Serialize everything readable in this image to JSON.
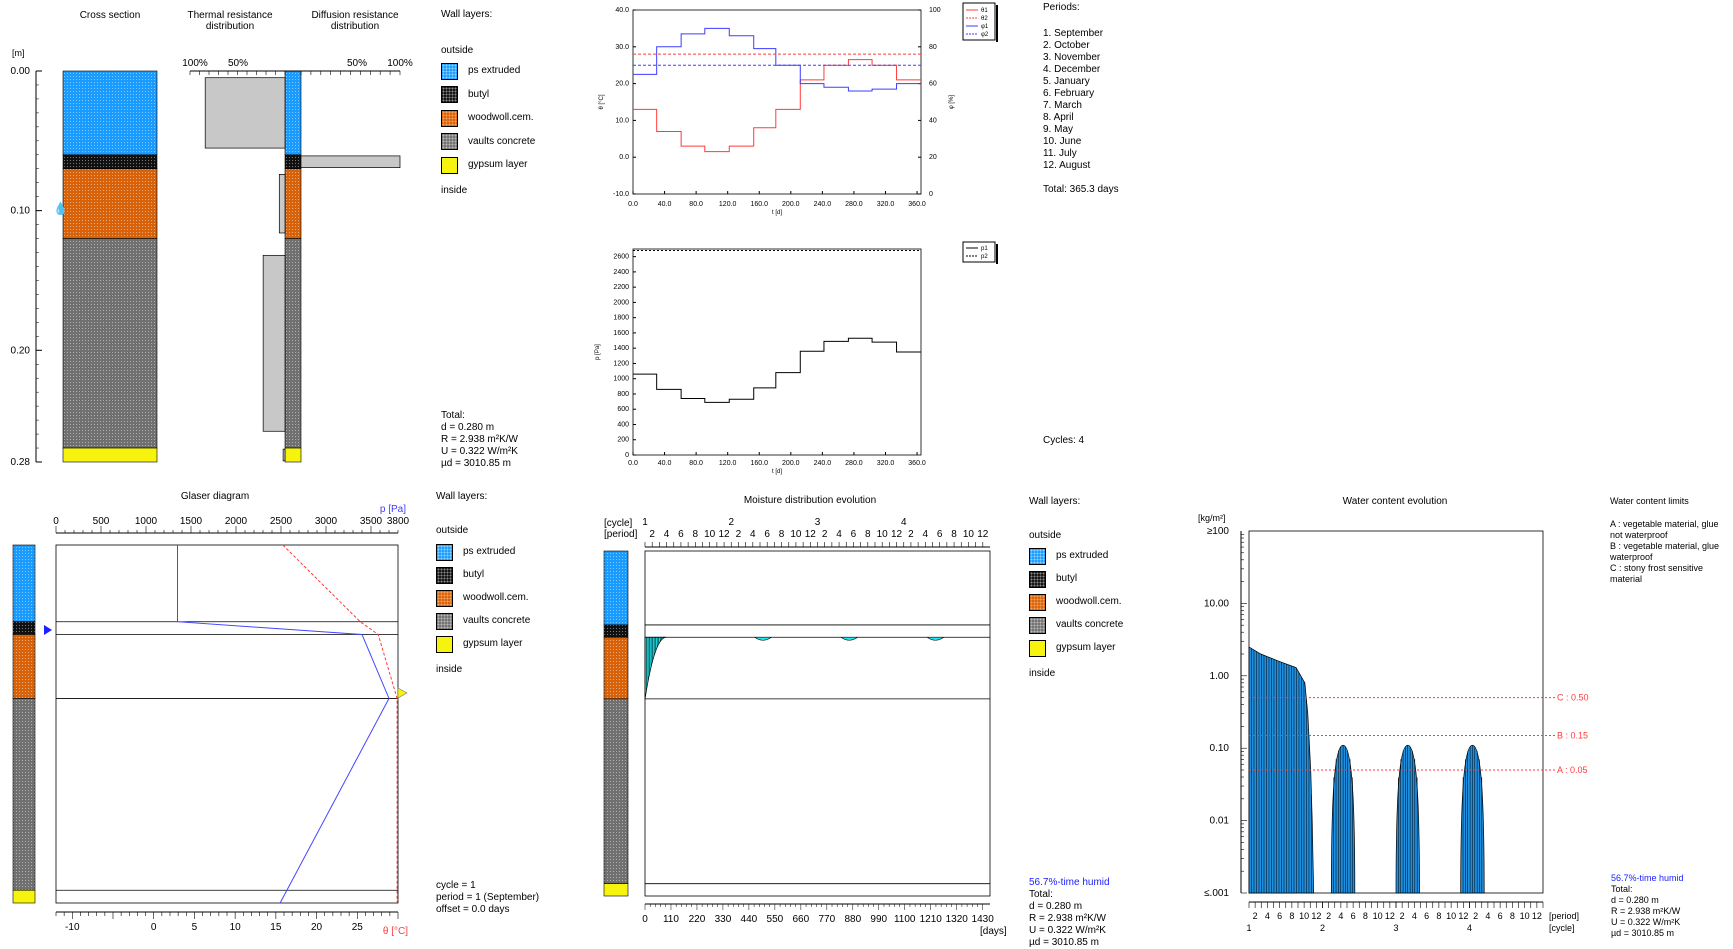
{
  "layers": [
    {
      "name": "ps extruded",
      "color": "#1a9cff",
      "cls": "pat-ps",
      "from": 0.0,
      "to": 0.06
    },
    {
      "name": "butyl",
      "color": "#111111",
      "cls": "pat-bu",
      "from": 0.06,
      "to": 0.07
    },
    {
      "name": "woodwoll.cem.",
      "color": "#d8620a",
      "cls": "pat-ww",
      "from": 0.07,
      "to": 0.12
    },
    {
      "name": "vaults concrete",
      "color": "#707070",
      "cls": "pat-vc",
      "from": 0.12,
      "to": 0.27
    },
    {
      "name": "gypsum layer",
      "color": "#f6f40e",
      "cls": "pat-gy",
      "from": 0.27,
      "to": 0.28
    }
  ],
  "cross_section": {
    "title": "Cross section",
    "unit": "[m]",
    "ticks": [
      "0.00",
      "0.10",
      "0.20",
      "0.28"
    ],
    "tick_values": [
      0,
      0.1,
      0.2,
      0.28
    ],
    "water_marker_depth": 0.095,
    "thermal_title": "Thermal resistance distribution",
    "diffusion_title": "Diffusion resistance distribution",
    "left_scale": [
      "100%",
      "50%"
    ],
    "right_scale": [
      "50%",
      "100%"
    ],
    "thermal_pct": [
      0.84,
      0,
      0.06,
      0.23,
      0.02
    ],
    "diffusion_pct": [
      0,
      1.0,
      0,
      0,
      0
    ]
  },
  "wall_layers_label": "Wall layers:",
  "outside_label": "outside",
  "inside_label": "inside",
  "totals": {
    "label": "Total:",
    "d": "d  = 0.280 m",
    "R": "R  = 2.938 m²K/W",
    "U": "U  = 0.322 W/m²K",
    "ud": "µd = 3010.85 m"
  },
  "climate_chart": {
    "type": "line",
    "x_ticks": [
      "0.0",
      "40.0",
      "80.0",
      "120.0",
      "160.0",
      "200.0",
      "240.0",
      "280.0",
      "320.0",
      "360.0"
    ],
    "y_ticks": [
      "-10.0",
      "0.0",
      "10.0",
      "20.0",
      "30.0",
      "40.0"
    ],
    "y2_ticks": [
      "0",
      "20",
      "40",
      "60",
      "80",
      "100"
    ],
    "xlabel": "t [d]",
    "ylabel": "θ [°C]",
    "y2label": "φ [%]",
    "legend": [
      "θ1",
      "θ2",
      "φ1",
      "φ2"
    ],
    "periods_x": [
      0,
      30,
      61,
      91,
      122,
      153,
      181,
      212,
      242,
      273,
      303,
      334,
      365
    ],
    "theta1": [
      13,
      7,
      3,
      1.5,
      3,
      8,
      13,
      21,
      25,
      26.5,
      25,
      21
    ],
    "theta2": 28,
    "phi1": [
      65,
      80,
      87,
      90,
      86,
      79,
      70,
      60,
      58,
      56,
      57,
      60
    ],
    "phi2": 70
  },
  "pressure_chart": {
    "type": "line",
    "x_ticks": [
      "0.0",
      "40.0",
      "80.0",
      "120.0",
      "160.0",
      "200.0",
      "240.0",
      "280.0",
      "320.0",
      "360.0"
    ],
    "y_ticks": [
      "0",
      "200",
      "400",
      "600",
      "800",
      "1000",
      "1200",
      "1400",
      "1600",
      "1800",
      "2000",
      "2200",
      "2400",
      "2600"
    ],
    "xlabel": "t [d]",
    "ylabel": "p [Pa]",
    "legend": [
      "p1",
      "p2"
    ],
    "p1": [
      1060,
      860,
      740,
      690,
      730,
      880,
      1080,
      1360,
      1490,
      1530,
      1480,
      1350
    ],
    "p2": 2680
  },
  "periods": {
    "title": "Periods:",
    "items": [
      "1. September",
      "2. October",
      "3. November",
      "4. December",
      "5. January",
      "6. February",
      "7. March",
      "8. April",
      "9. May",
      "10. June",
      "11. July",
      "12. August"
    ],
    "total": "Total: 365.3 days",
    "cycles": "Cycles: 4"
  },
  "glaser": {
    "title": "Glaser diagram",
    "p_label": "p [Pa]",
    "theta_label": "θ [°C]",
    "p_ticks": [
      "0",
      "500",
      "1000",
      "1500",
      "2000",
      "2500",
      "3000",
      "3500",
      "3800"
    ],
    "theta_ticks": [
      "-10",
      "0",
      "5",
      "10",
      "15",
      "20",
      "25"
    ],
    "cycle": "cycle = 1",
    "period": "period = 1 (September)",
    "offset": "offset = 0.0 days"
  },
  "moisture": {
    "title": "Moisture distribution evolution",
    "cycle_label": "[cycle]",
    "period_label": "[period]",
    "cycles": [
      "1",
      "2",
      "3",
      "4"
    ],
    "period_ticks": [
      "2",
      "4",
      "6",
      "8",
      "10",
      "12"
    ],
    "day_ticks": [
      "0",
      "110",
      "220",
      "330",
      "440",
      "550",
      "660",
      "770",
      "880",
      "990",
      "1100",
      "1210",
      "1320",
      "1430"
    ],
    "days_label": "[days]",
    "humid": "56.7%-time humid"
  },
  "water": {
    "title": "Water content evolution",
    "unit": "[kg/m²]",
    "y_ticks": [
      "≥100",
      "10.00",
      "1.00",
      "0.10",
      "0.01",
      "≤.001"
    ],
    "limits": [
      {
        "label": "C : 0.50",
        "value": 0.5
      },
      {
        "label": "B : 0.15",
        "value": 0.15
      },
      {
        "label": "A : 0.05",
        "value": 0.05
      }
    ],
    "limits_title": "Water content limits",
    "limits_text": [
      "A : vegetable material, glue not waterproof",
      "B : vegetable material, glue waterproof",
      "C : stony frost sensitive material"
    ],
    "period_label": "[period]",
    "cycle_label": "[cycle]",
    "humid": "56.7%-time humid"
  }
}
